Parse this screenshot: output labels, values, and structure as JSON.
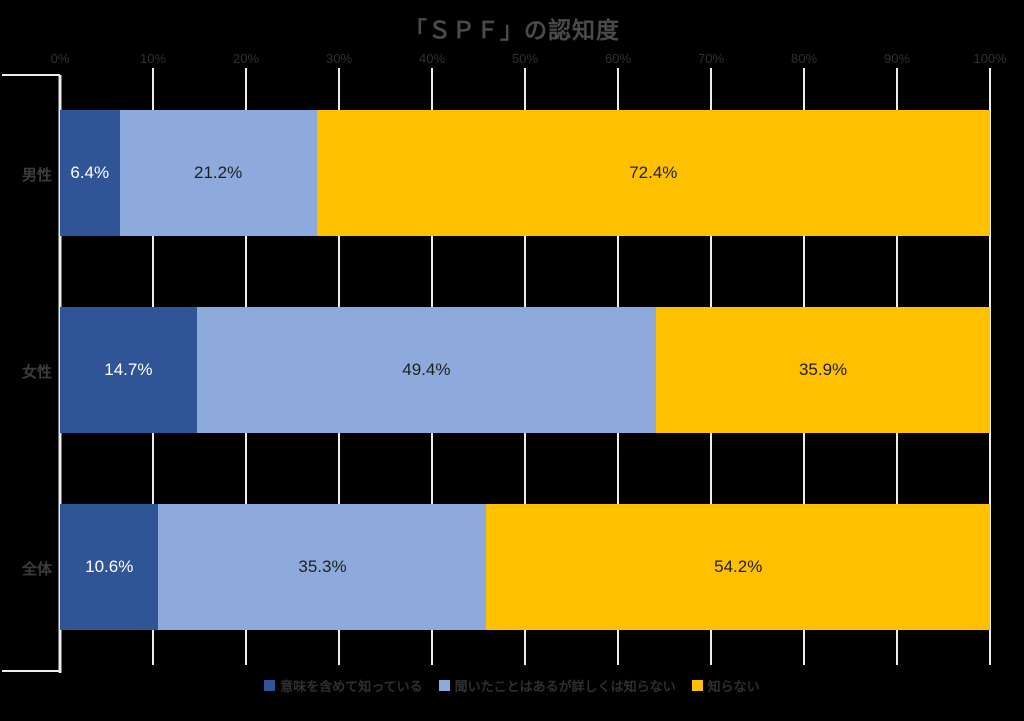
{
  "title": "「ＳＰＦ」の認知度",
  "chart_data": {
    "type": "bar",
    "orientation": "horizontal-stacked",
    "title": "「ＳＰＦ」の認知度",
    "categories": [
      "男性",
      "女性",
      "全体"
    ],
    "series": [
      {
        "name": "意味を含めて知っている",
        "color": "#2F5597",
        "label_color": "#FFFFFF",
        "values": [
          6.4,
          14.7,
          10.6
        ],
        "labels": [
          "6.4%",
          "14.7%",
          "10.6%"
        ]
      },
      {
        "name": "聞いたことはあるが詳しくは知らない",
        "color": "#8EAADC",
        "label_color": "#1F1F1F",
        "values": [
          21.2,
          49.4,
          35.3
        ],
        "labels": [
          "21.2%",
          "49.4%",
          "35.3%"
        ]
      },
      {
        "name": "知らない",
        "color": "#FFC000",
        "label_color": "#1F1F1F",
        "values": [
          72.4,
          35.9,
          54.2
        ],
        "labels": [
          "72.4%",
          "35.9%",
          "54.2%"
        ]
      }
    ],
    "x_axis": {
      "position": "top",
      "min": 0,
      "max": 100,
      "ticks": [
        "0%",
        "10%",
        "20%",
        "30%",
        "40%",
        "50%",
        "60%",
        "70%",
        "80%",
        "90%",
        "100%"
      ]
    },
    "grid": true,
    "gridline_color": "#ECECEC",
    "background_color": "#000000",
    "legend_position": "bottom",
    "value_suffix": "%"
  }
}
